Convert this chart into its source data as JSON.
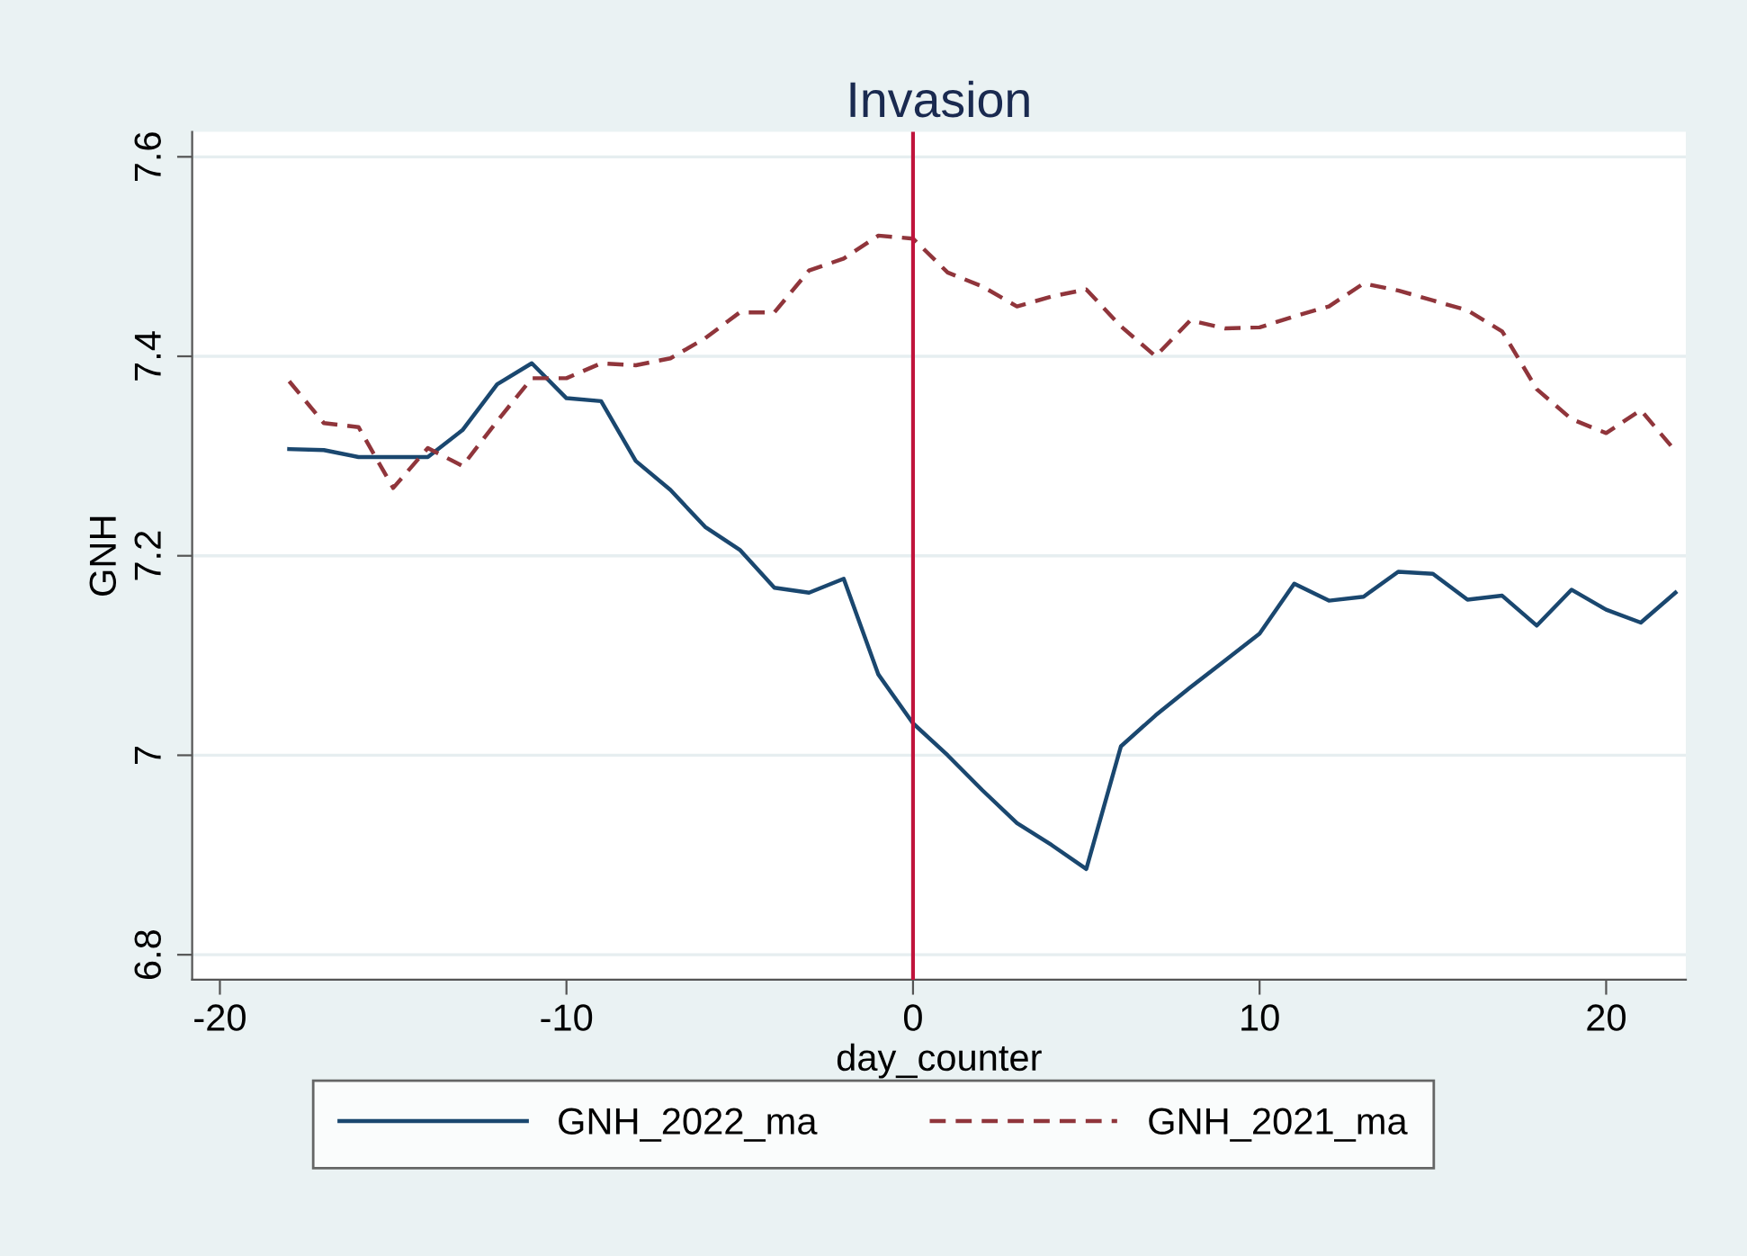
{
  "chart_data": {
    "type": "line",
    "title": "Invasion",
    "xlabel": "day_counter",
    "ylabel": "GNH",
    "x": [
      -18,
      -17,
      -16,
      -15,
      -14,
      -13,
      -12,
      -11,
      -10,
      -9,
      -8,
      -7,
      -6,
      -5,
      -4,
      -3,
      -2,
      -1,
      0,
      1,
      2,
      3,
      4,
      5,
      6,
      7,
      8,
      9,
      10,
      11,
      12,
      13,
      14,
      15,
      16,
      17,
      18,
      19,
      20,
      21,
      22
    ],
    "series": [
      {
        "name": "GNH_2022_ma",
        "color": "#1a476f",
        "line_style": "solid",
        "values": [
          7.307,
          7.306,
          7.299,
          7.299,
          7.299,
          7.326,
          7.372,
          7.393,
          7.358,
          7.355,
          7.295,
          7.266,
          7.229,
          7.206,
          7.168,
          7.163,
          7.177,
          7.081,
          7.032,
          7.0,
          6.965,
          6.932,
          6.91,
          6.886,
          7.009,
          7.04,
          7.068,
          7.095,
          7.122,
          7.172,
          7.155,
          7.159,
          7.184,
          7.182,
          7.156,
          7.16,
          7.13,
          7.166,
          7.146,
          7.133,
          7.163
        ]
      },
      {
        "name": "GNH_2021_ma",
        "color": "#90353b",
        "line_style": "dashed",
        "values": [
          7.375,
          7.333,
          7.329,
          7.268,
          7.308,
          7.29,
          7.335,
          7.378,
          7.378,
          7.393,
          7.391,
          7.398,
          7.418,
          7.444,
          7.444,
          7.486,
          7.498,
          7.521,
          7.518,
          7.484,
          7.47,
          7.45,
          7.46,
          7.467,
          7.43,
          7.4,
          7.436,
          7.428,
          7.429,
          7.44,
          7.45,
          7.473,
          7.466,
          7.456,
          7.446,
          7.425,
          7.367,
          7.337,
          7.323,
          7.346,
          7.305
        ]
      }
    ],
    "xlim": [
      -20.8,
      22.3
    ],
    "xticks": [
      -20,
      -10,
      0,
      10,
      20
    ],
    "ylim": [
      6.775,
      7.625
    ],
    "yticks": [
      6.8,
      7,
      7.2,
      7.4,
      7.6
    ],
    "ref_lines": [
      {
        "axis": "x",
        "value": 0,
        "color": "#c0143c"
      }
    ],
    "grid": "y",
    "legend": "bottom"
  }
}
